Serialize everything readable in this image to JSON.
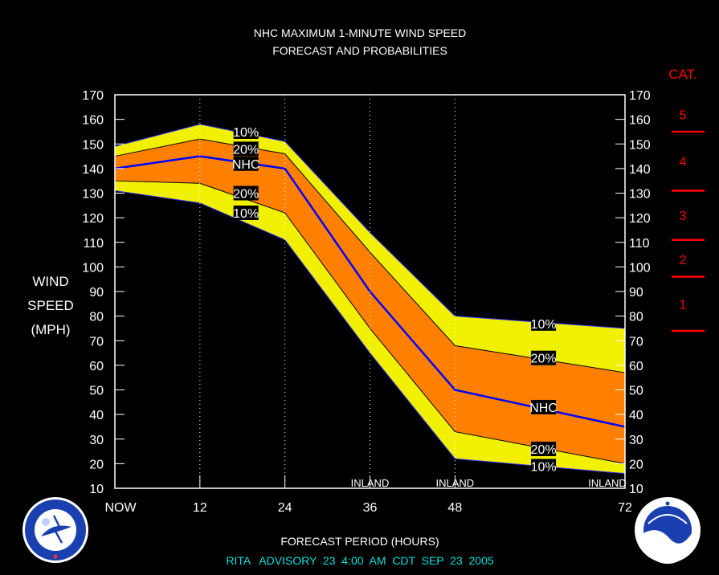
{
  "chart_data": {
    "type": "area",
    "title": "NHC MAXIMUM 1-MINUTE WIND SPEED",
    "subtitle": "FORECAST AND PROBABILITIES",
    "xlabel": "FORECAST PERIOD (HOURS)",
    "ylabel_lines": [
      "WIND",
      "SPEED",
      "(MPH)"
    ],
    "xlim": [
      0,
      72
    ],
    "ylim": [
      10,
      170
    ],
    "x_ticks": [
      {
        "x": 0,
        "label": "NOW"
      },
      {
        "x": 12,
        "label": "12"
      },
      {
        "x": 24,
        "label": "24"
      },
      {
        "x": 36,
        "label": "36"
      },
      {
        "x": 48,
        "label": "48"
      },
      {
        "x": 72,
        "label": "72"
      }
    ],
    "y_ticks": [
      10,
      20,
      30,
      40,
      50,
      60,
      70,
      80,
      90,
      100,
      110,
      120,
      130,
      140,
      150,
      160,
      170
    ],
    "vertical_gridlines_x": [
      12,
      24,
      36,
      48
    ],
    "x": [
      0,
      12,
      24,
      36,
      48,
      72
    ],
    "series": [
      {
        "name": "10%",
        "role": "upper",
        "values": [
          149,
          158,
          151,
          114,
          80,
          75
        ],
        "color": "#f0f000"
      },
      {
        "name": "20%",
        "role": "upper",
        "values": [
          145,
          152,
          146,
          106,
          68,
          57
        ],
        "color": "#ff8000"
      },
      {
        "name": "NHC",
        "role": "center",
        "values": [
          140,
          145,
          140,
          90,
          50,
          35
        ],
        "color": "#0000ff"
      },
      {
        "name": "20%",
        "role": "lower",
        "values": [
          135,
          134,
          122,
          75,
          33,
          20
        ],
        "color": "#ff8000"
      },
      {
        "name": "10%",
        "role": "lower",
        "values": [
          131,
          126,
          111,
          65,
          22,
          16
        ],
        "color": "#f0f000"
      }
    ],
    "band_labels": [
      {
        "text": "10%",
        "x": 18.5,
        "y": 155
      },
      {
        "text": "20%",
        "x": 18.5,
        "y": 148
      },
      {
        "text": "NHC",
        "x": 18.5,
        "y": 142
      },
      {
        "text": "20%",
        "x": 18.5,
        "y": 130
      },
      {
        "text": "10%",
        "x": 18.5,
        "y": 122
      },
      {
        "text": "10%",
        "x": 60.5,
        "y": 77
      },
      {
        "text": "20%",
        "x": 60.5,
        "y": 63
      },
      {
        "text": "NHC",
        "x": 60.5,
        "y": 43
      },
      {
        "text": "20%",
        "x": 60.5,
        "y": 26
      },
      {
        "text": "10%",
        "x": 60.5,
        "y": 19
      }
    ],
    "inland_labels": [
      {
        "text": "INLAND",
        "x": 36
      },
      {
        "text": "INLAND",
        "x": 48
      },
      {
        "text": "INLAND",
        "x": 69.5
      }
    ],
    "category_scale": {
      "title": "CAT.",
      "color": "#ff0000",
      "boundaries_mph": [
        74,
        96,
        111,
        131,
        155
      ],
      "categories": [
        {
          "label": "1",
          "mid": 85
        },
        {
          "label": "2",
          "mid": 103
        },
        {
          "label": "3",
          "mid": 121
        },
        {
          "label": "4",
          "mid": 143
        },
        {
          "label": "5",
          "mid": 162
        }
      ]
    },
    "footer": "RITA   ADVISORY  23  4:00  AM  CDT  SEP  23  2005",
    "footer_color": "#00e0e0",
    "logos": [
      "nws-seal",
      "noaa-logo"
    ]
  }
}
